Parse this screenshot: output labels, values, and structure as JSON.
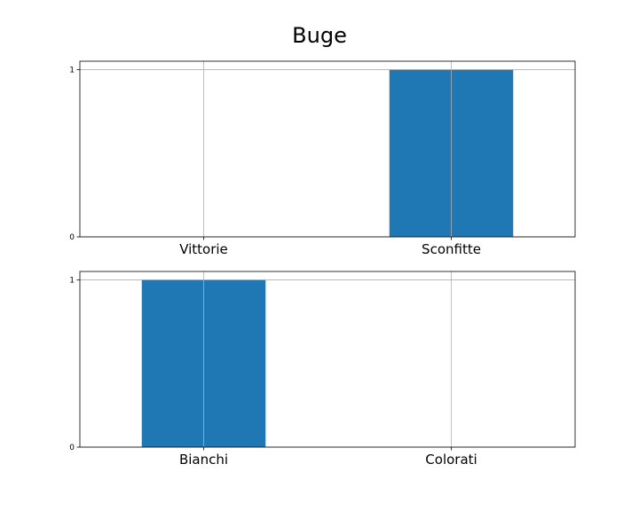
{
  "chart_data": [
    {
      "type": "bar",
      "title": "Buge",
      "categories": [
        "Vittorie",
        "Sconfitte"
      ],
      "values": [
        0,
        1
      ],
      "yticks": [
        0,
        1
      ],
      "ylim": [
        0,
        1.05
      ],
      "grid": true,
      "bar_color": "#1f77b4"
    },
    {
      "type": "bar",
      "categories": [
        "Bianchi",
        "Colorati"
      ],
      "values": [
        1,
        0
      ],
      "yticks": [
        0,
        1
      ],
      "ylim": [
        0,
        1.05
      ],
      "grid": true,
      "bar_color": "#1f77b4"
    }
  ]
}
